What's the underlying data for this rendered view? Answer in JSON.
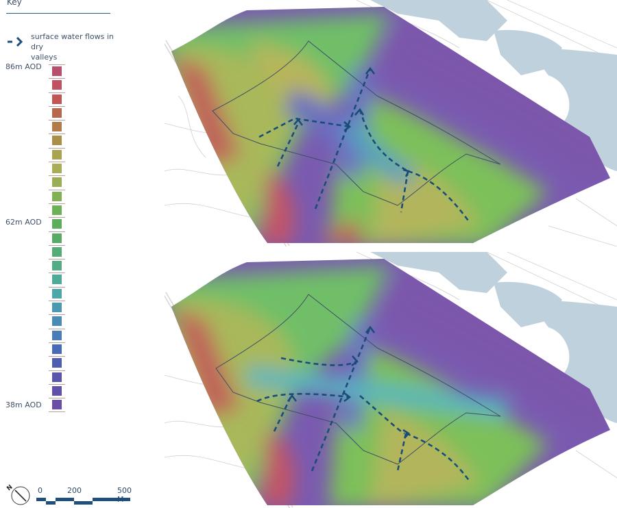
{
  "key": {
    "title": "Key",
    "flow_legend": {
      "icon": "dashed-arrow-icon",
      "label_line1": "surface water flows in dry",
      "label_line2": "valleys",
      "color": "#1d4f7c"
    },
    "elevation": {
      "top_label": "86m AOD",
      "mid_label": "62m AOD",
      "bottom_label": "38m AOD",
      "swatches": [
        "#b94f6f",
        "#bf5162",
        "#bf5855",
        "#b7684c",
        "#b27c48",
        "#a98f4a",
        "#a9a451",
        "#a8ad56",
        "#9aae56",
        "#82b055",
        "#6cb058",
        "#5cad5c",
        "#58ab66",
        "#54ab74",
        "#52ac86",
        "#4dac98",
        "#4ba7a8",
        "#4b99b0",
        "#4a8bb5",
        "#4a7cb8",
        "#496ab4",
        "#4d5daf",
        "#5855ab",
        "#6050a8",
        "#6a4ea6"
      ]
    }
  },
  "scale_bar": {
    "north_icon": "north-arrow-icon",
    "north_letter": "N",
    "labels": [
      "0",
      "200",
      "500 M"
    ],
    "color": "#1e4f7d"
  },
  "maps": [
    {
      "name": "existing-topography-map",
      "caption": ""
    },
    {
      "name": "proposed-topography-map",
      "caption": ""
    }
  ],
  "colors": {
    "water": "#bfd1dc",
    "flow_arrow": "#1a4c78",
    "boundary": "#3c4e66",
    "basemap_line": "#c8c8c8"
  }
}
